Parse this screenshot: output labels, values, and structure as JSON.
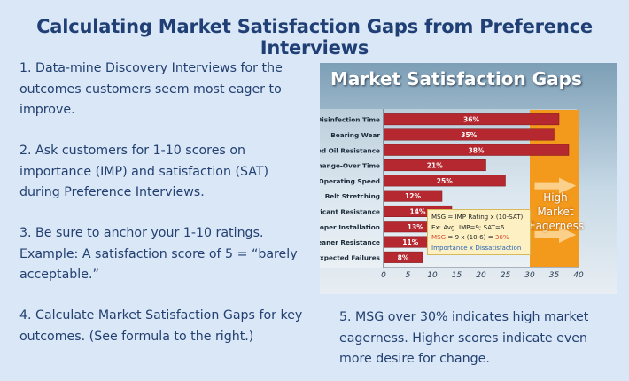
{
  "slide": {
    "title": "Calculating Market Satisfaction Gaps from Preference Interviews",
    "steps": [
      "1. Data-mine Discovery Interviews for the outcomes customers seem most eager to improve.",
      "2. Ask customers for 1-10 scores on importance (IMP) and satisfaction (SAT) during Preference Interviews.",
      "3. Be sure to anchor your 1-10 ratings. Example: A satisfaction score of 5 = “barely acceptable.”",
      "4. Calculate Market Satisfaction Gaps for key outcomes. (See formula to the right.)",
      "5. MSG over 30% indicates high market eagerness. Higher scores indicate even more desire for change."
    ]
  },
  "chart_panel": {
    "heading": "Market Satisfaction Gaps",
    "arrow_label": "High Market Eagerness",
    "formula": {
      "line1": "MSG = IMP Rating x (10-SAT)",
      "line2": "Ex: Avg. IMP=9; SAT=6",
      "line3_prefix": "MSG",
      "line3_rest": " = 9 x (10-6) = ",
      "line3_result": "36%",
      "line4": "Importance x Dissatisfaction"
    }
  },
  "chart_data": {
    "type": "bar",
    "orientation": "horizontal",
    "title": "Market Satisfaction Gaps",
    "categories": [
      "Disinfection Time",
      "Bearing Wear",
      "Food Oil Resistance",
      "Change-Over Time",
      "Operating Speed",
      "Belt Stretching",
      "Lubricant Resistance",
      "Improper Installation",
      "Cleaner Resistance",
      "Unexpected Failures"
    ],
    "values": [
      36,
      35,
      38,
      21,
      25,
      12,
      14,
      13,
      11,
      8
    ],
    "value_labels": [
      "36%",
      "35%",
      "38%",
      "21%",
      "25%",
      "12%",
      "14%",
      "13%",
      "11%",
      "8%"
    ],
    "xlim": [
      0,
      40
    ],
    "xticks": [
      0,
      5,
      10,
      15,
      20,
      25,
      30,
      35,
      40
    ],
    "highlight_threshold": 30,
    "colors": {
      "bar": "#b5282f",
      "highlight": "#f39a1c",
      "axis": "#3c4c60"
    }
  }
}
